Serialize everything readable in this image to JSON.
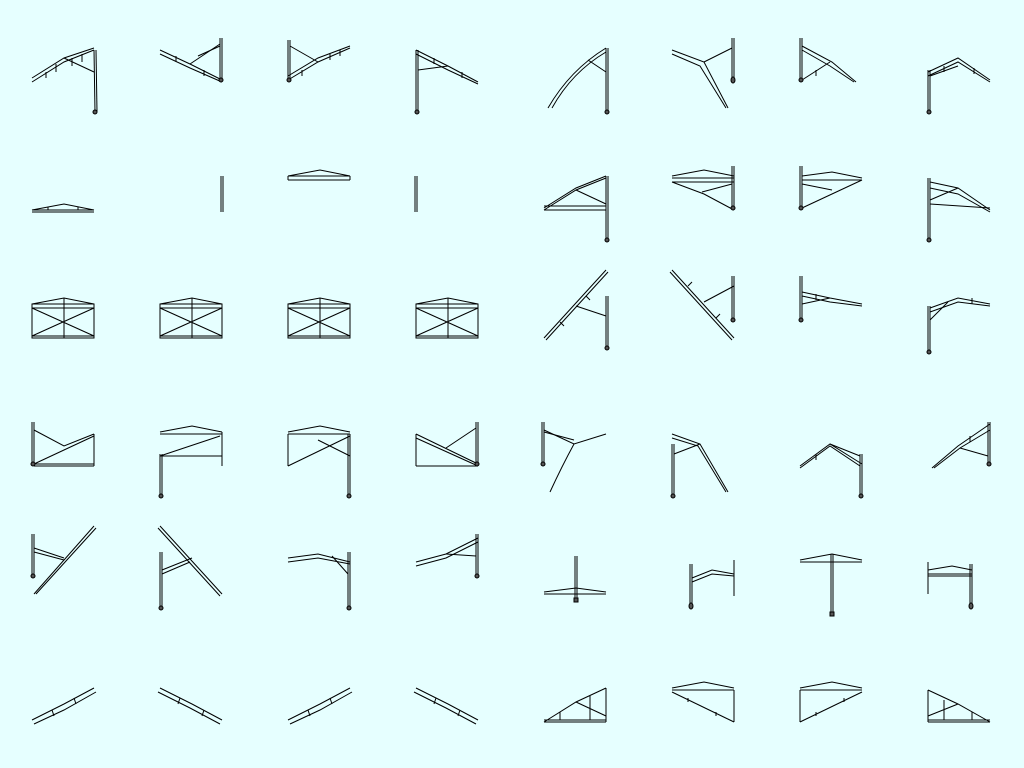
{
  "background": "#e6ffff",
  "line_color": "#000000",
  "grid": {
    "columns": 8,
    "rows": 6,
    "count": 48
  },
  "sprites": [
    {
      "icon": "truss-canopy-left-pole-icon"
    },
    {
      "icon": "truss-canopy-left-pole-icon"
    },
    {
      "icon": "truss-canopy-right-pole-icon"
    },
    {
      "icon": "truss-canopy-right-pole-icon"
    },
    {
      "icon": "truss-canopy-arc-icon"
    },
    {
      "icon": "truss-canopy-arc-icon"
    },
    {
      "icon": "truss-canopy-right-pole-icon"
    },
    {
      "icon": "truss-canopy-right-pole-icon"
    },
    {
      "icon": "flat-truss-icon"
    },
    {
      "icon": "vertical-post-icon"
    },
    {
      "icon": "flat-truss-icon"
    },
    {
      "icon": "vertical-post-icon"
    },
    {
      "icon": "truss-frame-left-pole-icon"
    },
    {
      "icon": "truss-frame-left-pole-icon"
    },
    {
      "icon": "truss-frame-right-pole-icon"
    },
    {
      "icon": "truss-frame-right-pole-icon"
    },
    {
      "icon": "truss-box-frame-icon"
    },
    {
      "icon": "truss-box-frame-icon"
    },
    {
      "icon": "truss-box-frame-icon"
    },
    {
      "icon": "truss-box-frame-icon"
    },
    {
      "icon": "diagonal-truss-left-pole-icon"
    },
    {
      "icon": "diagonal-truss-left-pole-icon"
    },
    {
      "icon": "truss-canopy-right-pole-icon"
    },
    {
      "icon": "truss-canopy-right-pole-icon"
    },
    {
      "icon": "truss-frame-right-pole-icon"
    },
    {
      "icon": "truss-frame-left-pole-icon"
    },
    {
      "icon": "truss-frame-left-pole-icon"
    },
    {
      "icon": "truss-frame-left-pole-icon"
    },
    {
      "icon": "truss-canopy-arc-icon"
    },
    {
      "icon": "truss-canopy-arc-icon"
    },
    {
      "icon": "truss-canopy-left-pole-icon"
    },
    {
      "icon": "truss-canopy-left-pole-icon"
    },
    {
      "icon": "diagonal-truss-left-pole-icon"
    },
    {
      "icon": "diagonal-truss-left-pole-icon"
    },
    {
      "icon": "truss-canopy-right-pole-icon"
    },
    {
      "icon": "truss-canopy-left-pole-icon"
    },
    {
      "icon": "cross-truss-post-icon"
    },
    {
      "icon": "goalpost-truss-icon"
    },
    {
      "icon": "t-truss-post-icon"
    },
    {
      "icon": "goalpost-truss-icon"
    },
    {
      "icon": "sloped-truss-icon"
    },
    {
      "icon": "sloped-truss-icon"
    },
    {
      "icon": "sloped-truss-icon"
    },
    {
      "icon": "sloped-truss-icon"
    },
    {
      "icon": "truss-triangle-icon"
    },
    {
      "icon": "truss-triangle-icon"
    },
    {
      "icon": "truss-triangle-icon"
    },
    {
      "icon": "truss-triangle-icon"
    }
  ]
}
